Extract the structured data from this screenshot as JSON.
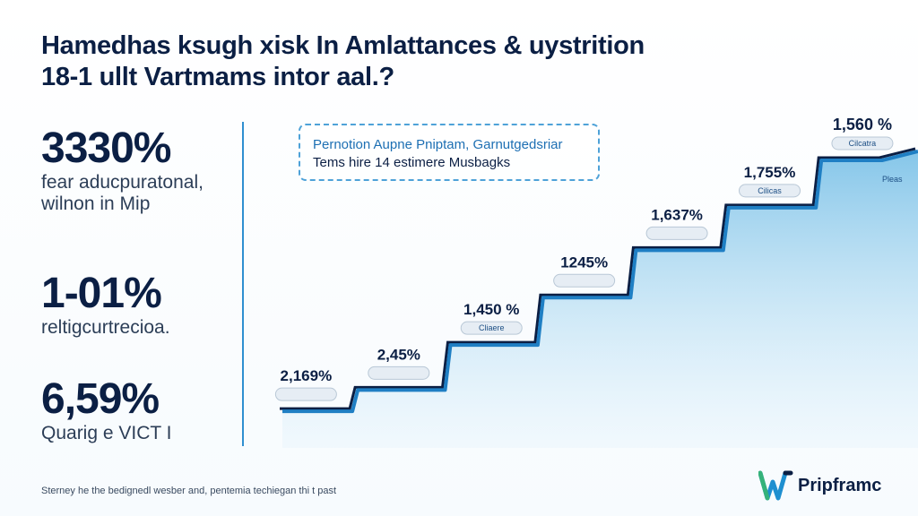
{
  "title": {
    "line1": "Hamedhas ksugh xisk In Amlattances & uystrition",
    "line2": "18-1 ullt Vartmams intor aal.?"
  },
  "stats": [
    {
      "value": "3330%",
      "label1": "fear aducpuratonal,",
      "label2": "wilnon in Mip"
    },
    {
      "value": "1-01%",
      "label1": "reltigcurtrecioa.",
      "label2": ""
    },
    {
      "value": "6,59%",
      "label1": "Quarig e VICT I",
      "label2": ""
    }
  ],
  "callout": {
    "line1": "Pernotion Aupne Pniptam, Garnutgedsriar",
    "line2": "Tems hire 14 estimere Musbagks"
  },
  "footnote": "Sterney he the bedignedl wesber and, pentemia techiegan thi t past",
  "brand": {
    "name": "Pripframc"
  },
  "colors": {
    "navy": "#0b1f44",
    "line": "#1f7fc4",
    "area_top": "#8fcbeb",
    "divider": "#2f8fd0"
  },
  "chart_data": {
    "type": "area",
    "points": [
      {
        "label": "2,169%",
        "tag": "",
        "x": 1,
        "y": 1.0
      },
      {
        "label": "2,45%",
        "tag": "",
        "x": 2,
        "y": 1.45
      },
      {
        "label": "1,450 %",
        "tag": "Cliaere",
        "x": 3,
        "y": 2.4
      },
      {
        "label": "1245%",
        "tag": "",
        "x": 4,
        "y": 3.4
      },
      {
        "label": "1,637%",
        "tag": "",
        "x": 5,
        "y": 4.4
      },
      {
        "label": "1,755%",
        "tag": "Cilicas",
        "x": 6,
        "y": 5.3
      },
      {
        "label": "1,560 %",
        "tag": "Cilcatra",
        "x": 7,
        "y": 6.3
      }
    ],
    "end_tag": "Pleas",
    "ylim": [
      0,
      7
    ],
    "xlim": [
      0.6,
      7.6
    ],
    "grid": false
  }
}
